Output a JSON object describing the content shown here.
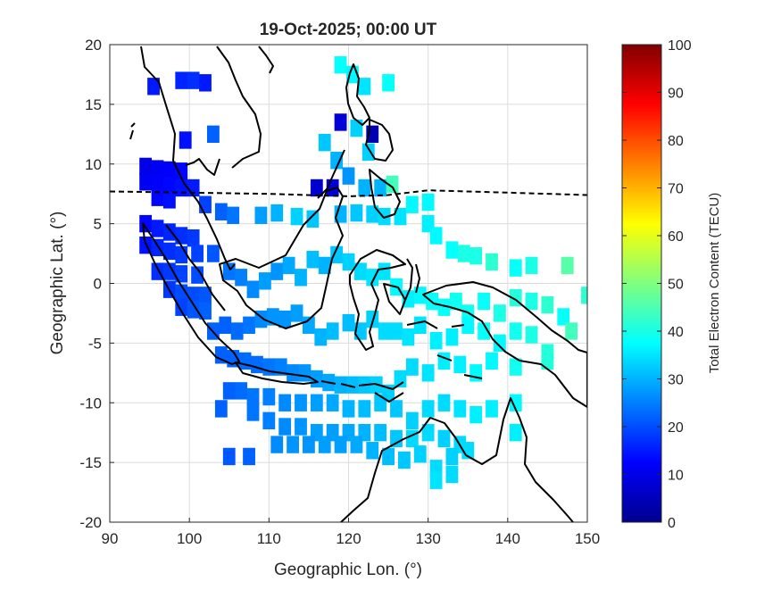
{
  "chart_data": {
    "type": "heatmap",
    "title": "19-Oct-2025; 00:00 UT",
    "xlabel": "Geographic Lon. (°)",
    "ylabel": "Geographic Lat. (°)",
    "xlim": [
      90,
      150
    ],
    "ylim": [
      -20,
      20
    ],
    "xticks": [
      "90",
      "100",
      "110",
      "120",
      "130",
      "140",
      "150"
    ],
    "yticks": [
      "20",
      "15",
      "10",
      "5",
      "0",
      "-5",
      "-10",
      "-15",
      "-20"
    ],
    "grid": true,
    "colorbar": {
      "label": "Total Electron Content (TECU)",
      "range": [
        0,
        100
      ],
      "ticks": [
        "100",
        "90",
        "80",
        "70",
        "60",
        "50",
        "40",
        "30",
        "20",
        "10",
        "0"
      ],
      "colormap": "jet"
    },
    "magnetic_equator_lat": [
      [
        90,
        7.7
      ],
      [
        100,
        7.6
      ],
      [
        110,
        7.5
      ],
      [
        120,
        7.3
      ],
      [
        125,
        7.4
      ],
      [
        130,
        7.8
      ],
      [
        140,
        7.6
      ],
      [
        150,
        7.4
      ]
    ],
    "tec_points": [
      [
        95.5,
        16.5,
        15
      ],
      [
        99,
        17,
        16
      ],
      [
        100.5,
        17,
        17
      ],
      [
        102,
        16.8,
        15
      ],
      [
        103,
        12.5,
        22
      ],
      [
        99.5,
        12,
        14
      ],
      [
        94.5,
        9.8,
        10
      ],
      [
        96,
        9.6,
        11
      ],
      [
        97.5,
        9.5,
        12
      ],
      [
        99,
        9.4,
        13
      ],
      [
        94.5,
        8.5,
        11
      ],
      [
        96,
        8.3,
        12
      ],
      [
        97.5,
        8.2,
        13
      ],
      [
        99,
        8,
        14
      ],
      [
        100.5,
        8,
        15
      ],
      [
        96,
        7.2,
        13
      ],
      [
        97.5,
        7,
        14
      ],
      [
        102,
        6.6,
        19
      ],
      [
        104,
        6,
        22
      ],
      [
        105.5,
        5.7,
        24
      ],
      [
        109,
        5.7,
        28
      ],
      [
        111,
        5.9,
        30
      ],
      [
        113.5,
        5.6,
        33
      ],
      [
        115.5,
        5.4,
        32
      ],
      [
        119,
        5.8,
        30
      ],
      [
        121,
        5.9,
        32
      ],
      [
        123,
        5.8,
        33
      ],
      [
        124.5,
        5.6,
        34
      ],
      [
        126.5,
        5.6,
        35
      ],
      [
        128,
        6.6,
        37
      ],
      [
        130,
        5,
        36
      ],
      [
        131,
        4,
        37
      ],
      [
        133,
        2.8,
        38
      ],
      [
        134.5,
        2.5,
        40
      ],
      [
        136,
        2.3,
        40
      ],
      [
        138,
        1.8,
        42
      ],
      [
        141,
        1.3,
        38
      ],
      [
        143,
        1.5,
        40
      ],
      [
        147.5,
        1.5,
        46
      ],
      [
        150,
        -1,
        42
      ],
      [
        94.5,
        5,
        13
      ],
      [
        96,
        4.6,
        15
      ],
      [
        97.5,
        4.3,
        16
      ],
      [
        99,
        4,
        17
      ],
      [
        100.5,
        3.8,
        18
      ],
      [
        94.5,
        3.2,
        14
      ],
      [
        96,
        3,
        16
      ],
      [
        97.5,
        2.7,
        17
      ],
      [
        99,
        2.4,
        18
      ],
      [
        101,
        2.5,
        19
      ],
      [
        103,
        2.5,
        21
      ],
      [
        96,
        1,
        17
      ],
      [
        97.5,
        1,
        18
      ],
      [
        99,
        0.8,
        19
      ],
      [
        101,
        0.7,
        20
      ],
      [
        97.5,
        -0.5,
        18
      ],
      [
        99,
        -0.8,
        20
      ],
      [
        100.5,
        -1,
        20
      ],
      [
        102,
        -1,
        21
      ],
      [
        99,
        -2,
        19
      ],
      [
        100.5,
        -2.2,
        21
      ],
      [
        102,
        -2.3,
        22
      ],
      [
        105,
        1,
        24
      ],
      [
        106.5,
        0.5,
        25
      ],
      [
        108,
        -0.5,
        26
      ],
      [
        109.5,
        0.2,
        28
      ],
      [
        111,
        1,
        27
      ],
      [
        112.5,
        1.5,
        29
      ],
      [
        114,
        0.5,
        30
      ],
      [
        115.5,
        2,
        31
      ],
      [
        117,
        1.5,
        30
      ],
      [
        118.5,
        2.4,
        32
      ],
      [
        120,
        1.8,
        33
      ],
      [
        121.5,
        1,
        34
      ],
      [
        123,
        0.5,
        35
      ],
      [
        124.5,
        1,
        35
      ],
      [
        126,
        -0.3,
        37
      ],
      [
        127.5,
        -1.3,
        36
      ],
      [
        129,
        -1,
        37
      ],
      [
        130.5,
        -1.5,
        38
      ],
      [
        132,
        -2,
        38
      ],
      [
        133.5,
        -1.5,
        39
      ],
      [
        135,
        -2.5,
        39
      ],
      [
        137,
        -1.5,
        38
      ],
      [
        139,
        -2.5,
        40
      ],
      [
        141,
        -1.2,
        41
      ],
      [
        143,
        -1.5,
        40
      ],
      [
        145,
        -1.8,
        42
      ],
      [
        147,
        -2.8,
        38
      ],
      [
        103,
        -4,
        22
      ],
      [
        104.5,
        -3.5,
        22
      ],
      [
        106,
        -4,
        23
      ],
      [
        107.5,
        -3.5,
        24
      ],
      [
        109,
        -3,
        26
      ],
      [
        110.5,
        -2.8,
        27
      ],
      [
        112,
        -3,
        27
      ],
      [
        113.5,
        -2.5,
        28
      ],
      [
        115,
        -3.5,
        29
      ],
      [
        116.5,
        -4.5,
        30
      ],
      [
        118,
        -4,
        31
      ],
      [
        120,
        -3.3,
        31
      ],
      [
        121.5,
        -4,
        32
      ],
      [
        123,
        -3,
        33
      ],
      [
        124.5,
        -4,
        34
      ],
      [
        126,
        -4,
        34
      ],
      [
        127.5,
        -4.5,
        35
      ],
      [
        129,
        -3.5,
        35
      ],
      [
        131,
        -4.8,
        36
      ],
      [
        133,
        -4.5,
        36
      ],
      [
        135,
        -3.5,
        37
      ],
      [
        137,
        -4,
        38
      ],
      [
        139,
        -5,
        37
      ],
      [
        141,
        -4,
        39
      ],
      [
        143,
        -4.3,
        40
      ],
      [
        145,
        -5.8,
        41
      ],
      [
        148,
        -4,
        44
      ],
      [
        104,
        -6,
        22
      ],
      [
        105.5,
        -6.3,
        22
      ],
      [
        107,
        -6.5,
        23
      ],
      [
        108.5,
        -6.8,
        23
      ],
      [
        110,
        -7,
        24
      ],
      [
        111.5,
        -7,
        25
      ],
      [
        113,
        -7.5,
        26
      ],
      [
        114.5,
        -7.5,
        27
      ],
      [
        116,
        -8,
        28
      ],
      [
        117.5,
        -8.3,
        29
      ],
      [
        119,
        -8.5,
        30
      ],
      [
        120.5,
        -8.5,
        31
      ],
      [
        122,
        -8.5,
        32
      ],
      [
        123.5,
        -8.5,
        33
      ],
      [
        125,
        -9.2,
        33
      ],
      [
        126.5,
        -8,
        34
      ],
      [
        128,
        -7,
        34
      ],
      [
        130,
        -7.5,
        35
      ],
      [
        132,
        -6.5,
        36
      ],
      [
        134,
        -6.8,
        36
      ],
      [
        136,
        -7.5,
        37
      ],
      [
        138,
        -6.5,
        37
      ],
      [
        141,
        -7,
        39
      ],
      [
        145,
        -6.5,
        41
      ],
      [
        105,
        -9,
        22
      ],
      [
        106.5,
        -9,
        23
      ],
      [
        108,
        -9.5,
        24
      ],
      [
        110,
        -9.5,
        25
      ],
      [
        112,
        -10,
        26
      ],
      [
        114,
        -10,
        27
      ],
      [
        116,
        -10,
        28
      ],
      [
        118,
        -10,
        29
      ],
      [
        120,
        -10.5,
        30
      ],
      [
        122,
        -10.5,
        31
      ],
      [
        124,
        -10,
        32
      ],
      [
        126,
        -10.5,
        32
      ],
      [
        128,
        -11.5,
        33
      ],
      [
        130,
        -10.5,
        34
      ],
      [
        132,
        -10,
        34
      ],
      [
        134,
        -10.5,
        35
      ],
      [
        136,
        -11,
        36
      ],
      [
        138,
        -10.5,
        36
      ],
      [
        141,
        -10,
        37
      ],
      [
        104,
        -10.5,
        22
      ],
      [
        108,
        -10.8,
        24
      ],
      [
        110,
        -11.5,
        25
      ],
      [
        112,
        -12,
        26
      ],
      [
        114,
        -12,
        27
      ],
      [
        116,
        -12.5,
        28
      ],
      [
        118,
        -12.5,
        28
      ],
      [
        120,
        -12.5,
        29
      ],
      [
        122,
        -12.5,
        30
      ],
      [
        124,
        -12.5,
        31
      ],
      [
        126,
        -13,
        32
      ],
      [
        128,
        -13,
        34
      ],
      [
        130,
        -12.5,
        34
      ],
      [
        132,
        -13,
        33
      ],
      [
        134,
        -13.5,
        34
      ],
      [
        141,
        -12.5,
        36
      ],
      [
        111,
        -13.5,
        26
      ],
      [
        113,
        -13.5,
        27
      ],
      [
        115,
        -13.5,
        27
      ],
      [
        117,
        -13.5,
        28
      ],
      [
        119,
        -13.5,
        28
      ],
      [
        121,
        -13.5,
        29
      ],
      [
        123,
        -14,
        30
      ],
      [
        125,
        -14.5,
        31
      ],
      [
        127,
        -14.8,
        32
      ],
      [
        129,
        -14.3,
        33
      ],
      [
        131,
        -15.5,
        34
      ],
      [
        133,
        -14.5,
        33
      ],
      [
        135,
        -14,
        34
      ],
      [
        131,
        -16.5,
        35
      ],
      [
        133,
        -16,
        34
      ],
      [
        105,
        -14.5,
        21
      ],
      [
        107.5,
        -14.5,
        22
      ],
      [
        119,
        18.3,
        38
      ],
      [
        120.5,
        17.5,
        37
      ],
      [
        122,
        16.5,
        35
      ],
      [
        125,
        16.8,
        38
      ],
      [
        119,
        13.5,
        8
      ],
      [
        121,
        13,
        33
      ],
      [
        123,
        12.5,
        4
      ],
      [
        117,
        11.8,
        32
      ],
      [
        122.5,
        11,
        33
      ],
      [
        118.5,
        10.3,
        30
      ],
      [
        120,
        9,
        27
      ],
      [
        116,
        8,
        7
      ],
      [
        118,
        8,
        8
      ],
      [
        122,
        8,
        30
      ],
      [
        124,
        8,
        30
      ],
      [
        125.5,
        8.3,
        44
      ],
      [
        130,
        6.8,
        37
      ]
    ]
  }
}
